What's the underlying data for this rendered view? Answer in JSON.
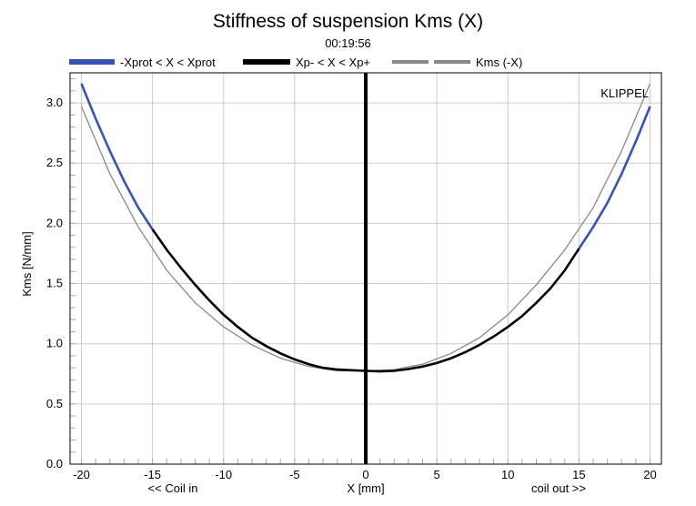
{
  "chart_data": {
    "type": "line",
    "title": "Stiffness of suspension Kms (X)",
    "subtitle": "00:19:56",
    "xlabel": "X [mm]",
    "ylabel": "Kms [N/mm]",
    "xlim": [
      -20.8,
      20.8
    ],
    "ylim": [
      0,
      3.25
    ],
    "x_ticks": [
      -20,
      -15,
      -10,
      -5,
      0,
      5,
      10,
      15,
      20
    ],
    "y_ticks": [
      0.0,
      0.5,
      1.0,
      1.5,
      2.0,
      2.5,
      3.0
    ],
    "x_tick_labels": [
      "-20",
      "-15",
      "-10",
      "-5",
      "0",
      "5",
      "10",
      "15",
      "20"
    ],
    "y_tick_labels": [
      "0.0",
      "0.5",
      "1.0",
      "1.5",
      "2.0",
      "2.5",
      "3.0"
    ],
    "x_left_note": "<< Coil in",
    "x_right_note": "coil out >>",
    "watermark": "KLIPPEL",
    "grid": true,
    "legend_position": "top",
    "series": [
      {
        "name": "-Xprot < X < Xprot",
        "color": "#3452c0",
        "x": [
          -20,
          -19,
          -18,
          -17,
          -16,
          -15,
          15,
          16,
          17,
          18,
          19,
          20
        ],
        "y": [
          3.16,
          2.87,
          2.6,
          2.35,
          2.13,
          1.95,
          1.79,
          1.97,
          2.17,
          2.41,
          2.68,
          2.97
        ]
      },
      {
        "name": "Xp- < X < Xp+",
        "color": "#000000",
        "x": [
          -15,
          -14,
          -13,
          -12,
          -11,
          -10,
          -9,
          -8,
          -7,
          -6,
          -5,
          -4,
          -3,
          -2,
          -1,
          0,
          1,
          2,
          3,
          4,
          5,
          6,
          7,
          8,
          9,
          10,
          11,
          12,
          13,
          14,
          15
        ],
        "y": [
          1.95,
          1.78,
          1.63,
          1.49,
          1.36,
          1.24,
          1.14,
          1.05,
          0.98,
          0.92,
          0.87,
          0.83,
          0.8,
          0.785,
          0.78,
          0.775,
          0.77,
          0.775,
          0.79,
          0.81,
          0.84,
          0.88,
          0.93,
          0.99,
          1.06,
          1.14,
          1.23,
          1.34,
          1.46,
          1.61,
          1.79
        ]
      },
      {
        "name": "Kms (-X)",
        "color": "#888888",
        "x": [
          -20,
          -18,
          -16,
          -14,
          -12,
          -10,
          -8,
          -6,
          -4,
          -2,
          0,
          2,
          4,
          6,
          8,
          10,
          12,
          14,
          16,
          18,
          20
        ],
        "y": [
          2.97,
          2.41,
          1.97,
          1.61,
          1.34,
          1.14,
          0.99,
          0.88,
          0.81,
          0.775,
          0.775,
          0.785,
          0.83,
          0.92,
          1.05,
          1.24,
          1.49,
          1.78,
          2.13,
          2.6,
          3.16
        ]
      }
    ],
    "marker_line": {
      "x": 0,
      "color": "#000000"
    }
  }
}
